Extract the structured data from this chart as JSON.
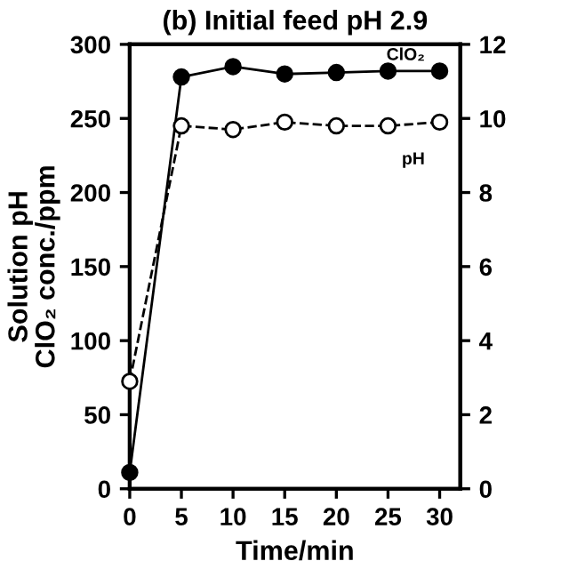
{
  "chart_data": {
    "type": "line",
    "title": "(b) Initial feed pH 2.9",
    "xlabel": "Time/min",
    "ylabel": "Solution pH\nClO₂ conc./ppm",
    "x": [
      0,
      5,
      10,
      15,
      20,
      25,
      30
    ],
    "series": [
      {
        "name": "ClO₂",
        "color": "#000000",
        "values": [
          11,
          278,
          285,
          280,
          281,
          282,
          282
        ],
        "marker": "circle",
        "line_style": "solid"
      },
      {
        "name": "pH",
        "color": "#000000",
        "values": [
          2.9,
          9.8,
          9.7,
          9.9,
          9.8,
          9.8,
          9.9
        ],
        "axis": "y2",
        "marker": "circle",
        "line_style": "dashed"
      }
    ],
    "xlim": [
      0,
      32
    ],
    "xticks": [
      0,
      5,
      10,
      15,
      20,
      25,
      30
    ],
    "ylim": [
      0,
      300
    ],
    "yticks": [
      0,
      50,
      100,
      150,
      200,
      250,
      300
    ],
    "y2lim": [
      0,
      12
    ],
    "y2ticks": [
      0,
      2,
      4,
      6,
      8,
      10,
      12
    ],
    "grid": false,
    "legend": false
  }
}
